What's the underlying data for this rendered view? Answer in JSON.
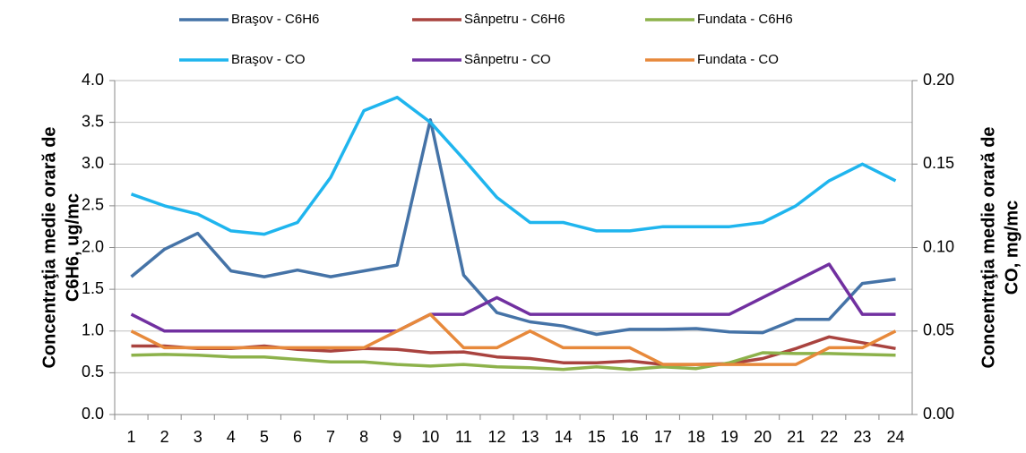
{
  "chart_data": {
    "type": "line",
    "ylabel": [
      "Concentraţia medie orară de",
      "C6H6, ug/mc"
    ],
    "y2label": [
      "Concentraţia medie orară de",
      "CO, mg/mc"
    ],
    "categories": [
      "1",
      "2",
      "3",
      "4",
      "5",
      "6",
      "7",
      "8",
      "9",
      "10",
      "11",
      "12",
      "13",
      "14",
      "15",
      "16",
      "17",
      "18",
      "19",
      "20",
      "21",
      "22",
      "23",
      "24"
    ],
    "ylim": [
      0,
      4
    ],
    "yticks": [
      {
        "value": 0,
        "label": "0.0"
      },
      0.5,
      {
        "value": 1,
        "label": "1.0"
      },
      1.5,
      {
        "value": 2,
        "label": "2.0"
      },
      2.5,
      {
        "value": 3,
        "label": "3.0"
      },
      3.5,
      {
        "value": 4,
        "label": "4.0"
      }
    ],
    "y2lim": [
      0,
      0.2
    ],
    "y2ticks": [
      {
        "value": 0,
        "label": "0.00"
      },
      0.05,
      {
        "value": 0.1,
        "label": "0.10"
      },
      0.15,
      {
        "value": 0.2,
        "label": "0.20"
      }
    ],
    "grid": true,
    "legend": "top",
    "series": [
      {
        "name": "Braşov - C6H6",
        "color": "#4573a7",
        "values": [
          1.65,
          1.98,
          2.17,
          1.72,
          1.65,
          1.73,
          1.65,
          1.72,
          1.79,
          3.53,
          1.67,
          1.22,
          1.11,
          1.06,
          0.96,
          1.02,
          1.02,
          1.03,
          0.99,
          0.98,
          1.14,
          1.14,
          1.57,
          1.62
        ]
      },
      {
        "name": "Sânpetru - C6H6",
        "color": "#a9433f",
        "values": [
          0.82,
          0.82,
          0.79,
          0.79,
          0.82,
          0.78,
          0.76,
          0.79,
          0.78,
          0.74,
          0.75,
          0.69,
          0.67,
          0.62,
          0.62,
          0.64,
          0.6,
          0.6,
          0.61,
          0.67,
          0.79,
          0.93,
          0.86,
          0.79
        ]
      },
      {
        "name": "Fundata - C6H6",
        "color": "#8db24b",
        "values": [
          0.71,
          0.72,
          0.71,
          0.69,
          0.69,
          0.66,
          0.63,
          0.63,
          0.6,
          0.58,
          0.6,
          0.57,
          0.56,
          0.54,
          0.57,
          0.54,
          0.57,
          0.55,
          0.62,
          0.74,
          0.73,
          0.73,
          0.72,
          0.71
        ]
      },
      {
        "name": "Braşov - CO",
        "color": "#1fb5ee",
        "axis": "y2",
        "values": [
          0.132,
          0.125,
          0.12,
          0.11,
          0.108,
          0.115,
          0.142,
          0.182,
          0.19,
          0.175,
          0.153,
          0.13,
          0.115,
          0.115,
          0.11,
          0.11,
          0.1125,
          0.1125,
          0.1125,
          0.115,
          0.125,
          0.14,
          0.15,
          0.14
        ]
      },
      {
        "name": "Sânpetru - CO",
        "color": "#7130a0",
        "axis": "y2",
        "values": [
          0.06,
          0.05,
          0.05,
          0.05,
          0.05,
          0.05,
          0.05,
          0.05,
          0.05,
          0.06,
          0.06,
          0.07,
          0.06,
          0.06,
          0.06,
          0.06,
          0.06,
          0.06,
          0.06,
          0.07,
          0.08,
          0.09,
          0.06,
          0.06
        ]
      },
      {
        "name": "Fundata - CO",
        "color": "#e7893b",
        "axis": "y2",
        "values": [
          0.05,
          0.04,
          0.04,
          0.04,
          0.04,
          0.04,
          0.04,
          0.04,
          0.05,
          0.06,
          0.04,
          0.04,
          0.05,
          0.04,
          0.04,
          0.04,
          0.03,
          0.03,
          0.03,
          0.03,
          0.03,
          0.04,
          0.04,
          0.05
        ]
      }
    ]
  }
}
